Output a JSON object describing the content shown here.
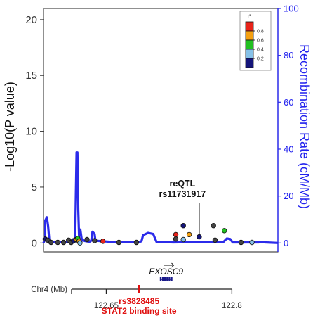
{
  "chart_data": {
    "type": "scatter",
    "xlim": [
      122.575,
      122.855
    ],
    "left_axis": {
      "label": "-Log10(P value)",
      "ylim": [
        -0.8,
        21
      ],
      "ticks": [
        0,
        5,
        10,
        15,
        20
      ],
      "tick_labels": [
        "0",
        "5",
        "10",
        "15",
        "20"
      ]
    },
    "right_axis": {
      "label": "Recombination Rate (cM/Mb)",
      "ylim": [
        -3.81,
        100
      ],
      "ticks": [
        0,
        20,
        40,
        60,
        80,
        100
      ],
      "tick_labels": [
        "0",
        "20",
        "40",
        "60",
        "80",
        "100"
      ]
    },
    "legend": {
      "title": "r²",
      "position": "top-right",
      "ticks": [
        "0.8",
        "0.6",
        "0.4",
        "0.2"
      ],
      "colors": [
        "#e8231a",
        "#f5a011",
        "#21c021",
        "#86c1e8",
        "#14147a"
      ]
    },
    "recombination": [
      [
        122.575,
        0
      ],
      [
        122.576,
        0.2
      ],
      [
        122.577,
        2.0
      ],
      [
        122.579,
        2.3
      ],
      [
        122.5805,
        1.5
      ],
      [
        122.582,
        0.2
      ],
      [
        122.584,
        0.05
      ],
      [
        122.6,
        0.1
      ],
      [
        122.608,
        0.1
      ],
      [
        122.612,
        0.2
      ],
      [
        122.613,
        1.0
      ],
      [
        122.6135,
        3.5
      ],
      [
        122.6145,
        8.1
      ],
      [
        122.6155,
        8.1
      ],
      [
        122.6165,
        3.0
      ],
      [
        122.6175,
        0.6
      ],
      [
        122.619,
        1.2
      ],
      [
        122.6205,
        0.4
      ],
      [
        122.622,
        0.2
      ],
      [
        122.63,
        0.1
      ],
      [
        122.632,
        0.2
      ],
      [
        122.6335,
        1.0
      ],
      [
        122.636,
        0.8
      ],
      [
        122.637,
        0.2
      ],
      [
        122.655,
        0.1
      ],
      [
        122.69,
        0.1
      ],
      [
        122.692,
        0.15
      ],
      [
        122.694,
        0.7
      ],
      [
        122.7,
        0.9
      ],
      [
        122.706,
        0.8
      ],
      [
        122.71,
        0.1
      ],
      [
        122.73,
        0.05
      ],
      [
        122.79,
        0.1
      ],
      [
        122.794,
        0.4
      ],
      [
        122.798,
        0.35
      ],
      [
        122.801,
        0.05
      ],
      [
        122.832,
        0.05
      ],
      [
        122.836,
        0.1
      ],
      [
        122.84,
        0.05
      ],
      [
        122.855,
        0
      ]
    ],
    "points": [
      {
        "x": 122.577,
        "y": 0.35,
        "r2": "#14147a"
      },
      {
        "x": 122.58,
        "y": 0.25,
        "r2": "#444444"
      },
      {
        "x": 122.584,
        "y": 0.05,
        "r2": "#444444"
      },
      {
        "x": 122.592,
        "y": 0.05,
        "r2": "#444444"
      },
      {
        "x": 122.599,
        "y": 0.05,
        "r2": "#444444"
      },
      {
        "x": 122.605,
        "y": 0.25,
        "r2": "#444444"
      },
      {
        "x": 122.608,
        "y": 0.05,
        "r2": "#444444"
      },
      {
        "x": 122.611,
        "y": 0.2,
        "r2": "#14147a"
      },
      {
        "x": 122.614,
        "y": 0.3,
        "r2": "#444444"
      },
      {
        "x": 122.6145,
        "y": 0.3,
        "r2": "#f5a011"
      },
      {
        "x": 122.616,
        "y": 0.4,
        "r2": "#21c021"
      },
      {
        "x": 122.6175,
        "y": 0.15,
        "r2": "#f5a011"
      },
      {
        "x": 122.6185,
        "y": 0.0,
        "r2": "#86c1e8"
      },
      {
        "x": 122.627,
        "y": 0.3,
        "r2": "#444444"
      },
      {
        "x": 122.636,
        "y": 0.2,
        "r2": "#444444"
      },
      {
        "x": 122.646,
        "y": 0.15,
        "r2": "#e8231a"
      },
      {
        "x": 122.665,
        "y": 0.05,
        "r2": "#444444"
      },
      {
        "x": 122.686,
        "y": 0.05,
        "r2": "#444444"
      },
      {
        "x": 122.733,
        "y": 0.35,
        "r2": "#444444"
      },
      {
        "x": 122.733,
        "y": 0.75,
        "r2": "#e8231a"
      },
      {
        "x": 122.742,
        "y": 0.3,
        "r2": "#86c1e8"
      },
      {
        "x": 122.742,
        "y": 1.55,
        "r2": "#14147a"
      },
      {
        "x": 122.749,
        "y": 0.75,
        "r2": "#f5a011"
      },
      {
        "x": 122.761,
        "y": 0.55,
        "r2": "#14147a"
      },
      {
        "x": 122.778,
        "y": 1.55,
        "r2": "#444444"
      },
      {
        "x": 122.78,
        "y": 0.25,
        "r2": "#444444"
      },
      {
        "x": 122.791,
        "y": 1.1,
        "r2": "#21c021"
      },
      {
        "x": 122.811,
        "y": 0.05,
        "r2": "#444444"
      },
      {
        "x": 122.824,
        "y": 0.05,
        "r2": "#86c1e8"
      }
    ],
    "annotation": {
      "lines": [
        "reQTL",
        "rs11731917"
      ],
      "x": 122.761
    },
    "gene": {
      "name": "EXOSC9",
      "start": 122.715,
      "end": 122.728
    },
    "chromosome": {
      "label": "Chr4 (Mb)",
      "ticks": [
        122.65,
        122.8
      ],
      "tick_labels": [
        "122.65",
        "122.8"
      ],
      "range": [
        122.575,
        122.8
      ]
    },
    "marker": {
      "x": 122.7,
      "lines": [
        "rs3828485",
        "STAT2 binding site"
      ]
    }
  }
}
